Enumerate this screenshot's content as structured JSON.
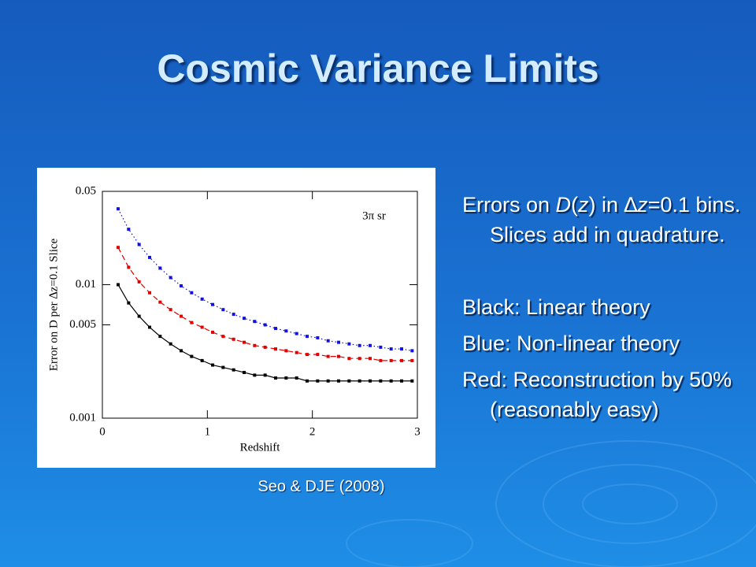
{
  "slide": {
    "title": "Cosmic Variance Limits",
    "caption": "Seo & DJE (2008)",
    "bullets": [
      [
        "Errors on ",
        "D",
        "(",
        "z",
        ") in ",
        "∆",
        "z",
        "=0.1 bins.  Slices add in quadrature."
      ],
      [
        "Black: Linear theory"
      ],
      [
        "Blue: Non-linear theory"
      ],
      [
        "Red: Reconstruction by 50% (reasonably easy)"
      ]
    ]
  },
  "chart_data": {
    "type": "line",
    "xlabel": "Redshift",
    "ylabel": "Error on D per ∆z=0.1 Slice",
    "annotation": "3π sr",
    "x": [
      0.15,
      0.25,
      0.35,
      0.45,
      0.55,
      0.65,
      0.75,
      0.85,
      0.95,
      1.05,
      1.15,
      1.25,
      1.35,
      1.45,
      1.55,
      1.65,
      1.75,
      1.85,
      1.95,
      2.05,
      2.15,
      2.25,
      2.35,
      2.45,
      2.55,
      2.65,
      2.75,
      2.85,
      2.95
    ],
    "series": [
      {
        "name": "Linear theory",
        "color": "#000000",
        "linestyle": "solid",
        "values": [
          0.01,
          0.0073,
          0.0058,
          0.0048,
          0.0041,
          0.0036,
          0.0032,
          0.0029,
          0.0027,
          0.0025,
          0.0024,
          0.0023,
          0.0022,
          0.0021,
          0.0021,
          0.002,
          0.002,
          0.002,
          0.0019,
          0.0019,
          0.0019,
          0.0019,
          0.0019,
          0.0019,
          0.0019,
          0.0019,
          0.0019,
          0.0019,
          0.0019
        ]
      },
      {
        "name": "Reconstruction",
        "color": "#e00000",
        "linestyle": "dashed",
        "values": [
          0.019,
          0.0135,
          0.0105,
          0.0087,
          0.0074,
          0.0065,
          0.0058,
          0.0052,
          0.0048,
          0.0044,
          0.0041,
          0.0039,
          0.0037,
          0.0035,
          0.0034,
          0.0033,
          0.0032,
          0.0031,
          0.003,
          0.003,
          0.0029,
          0.0029,
          0.0028,
          0.0028,
          0.0028,
          0.0027,
          0.0027,
          0.0027,
          0.0027
        ]
      },
      {
        "name": "Non-linear theory",
        "color": "#1010e0",
        "linestyle": "dotted",
        "values": [
          0.037,
          0.026,
          0.02,
          0.016,
          0.0133,
          0.0113,
          0.0098,
          0.0087,
          0.0078,
          0.0071,
          0.0065,
          0.006,
          0.0056,
          0.0053,
          0.005,
          0.0047,
          0.0045,
          0.0043,
          0.0041,
          0.004,
          0.0038,
          0.0037,
          0.0036,
          0.0035,
          0.0035,
          0.0034,
          0.0033,
          0.0033,
          0.0032
        ]
      }
    ],
    "xlim": [
      0,
      3
    ],
    "xticks": [
      0,
      1,
      2,
      3
    ],
    "ylim": [
      0.001,
      0.05
    ],
    "yticks": [
      0.001,
      0.005,
      0.01,
      0.05
    ],
    "log_y": true,
    "grid": false,
    "legend": false
  }
}
